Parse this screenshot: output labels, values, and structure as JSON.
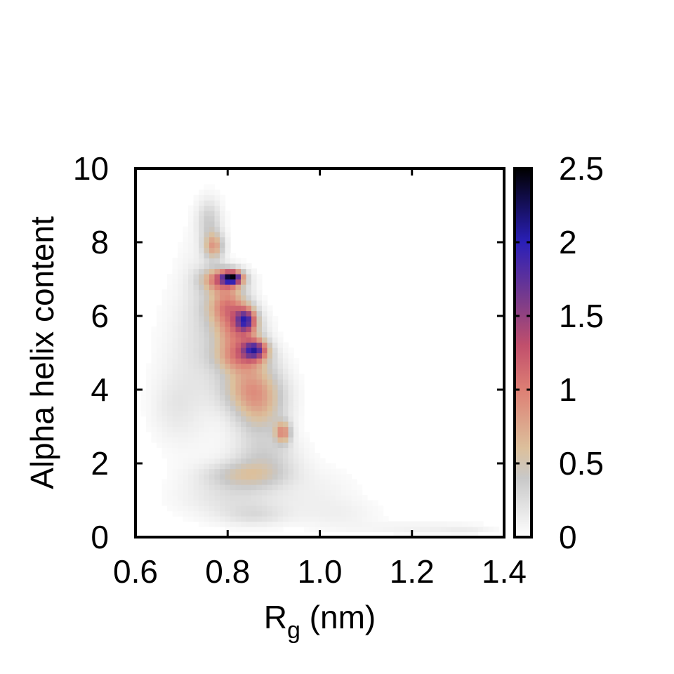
{
  "chart_data": {
    "type": "heatmap",
    "xlabel": "R",
    "xlabel_subscript": "g",
    "xlabel_unit": " (nm)",
    "ylabel": "Alpha helix content",
    "xlim": [
      0.6,
      1.4
    ],
    "ylim": [
      0,
      10
    ],
    "x_ticks": [
      0.6,
      0.8,
      1.0,
      1.2,
      1.4
    ],
    "x_tick_labels": [
      "0.6",
      "0.8",
      "1.0",
      "1.2",
      "1.4"
    ],
    "y_ticks": [
      0,
      2,
      4,
      6,
      8,
      10
    ],
    "y_tick_labels": [
      "0",
      "2",
      "4",
      "6",
      "8",
      "10"
    ],
    "colorbar": {
      "range": [
        0,
        2.5
      ],
      "ticks": [
        0,
        0.5,
        1,
        1.5,
        2,
        2.5
      ],
      "tick_labels": [
        "0",
        "0.5",
        "1",
        "1.5",
        "2",
        "2.5"
      ],
      "colormap": [
        {
          "v": 0.0,
          "color": "#ffffff"
        },
        {
          "v": 0.4,
          "color": "#c8c8c8"
        },
        {
          "v": 0.6,
          "color": "#dcc09c"
        },
        {
          "v": 1.0,
          "color": "#dd7f74"
        },
        {
          "v": 1.3,
          "color": "#c14f6c"
        },
        {
          "v": 1.6,
          "color": "#7c3c8a"
        },
        {
          "v": 2.0,
          "color": "#2a1fb8"
        },
        {
          "v": 2.5,
          "color": "#000000"
        }
      ]
    },
    "density_peaks": [
      {
        "x": 0.76,
        "y": 8.6,
        "sx": 0.018,
        "sy": 0.4,
        "v": 0.35
      },
      {
        "x": 0.77,
        "y": 7.9,
        "sx": 0.015,
        "sy": 0.25,
        "v": 0.75
      },
      {
        "x": 0.79,
        "y": 7.0,
        "sx": 0.03,
        "sy": 0.22,
        "v": 1.1
      },
      {
        "x": 0.81,
        "y": 7.05,
        "sx": 0.015,
        "sy": 0.12,
        "v": 1.6
      },
      {
        "x": 0.8,
        "y": 6.3,
        "sx": 0.03,
        "sy": 0.35,
        "v": 0.9
      },
      {
        "x": 0.84,
        "y": 5.9,
        "sx": 0.015,
        "sy": 0.22,
        "v": 1.3
      },
      {
        "x": 0.82,
        "y": 5.6,
        "sx": 0.035,
        "sy": 0.4,
        "v": 0.85
      },
      {
        "x": 0.86,
        "y": 5.1,
        "sx": 0.018,
        "sy": 0.18,
        "v": 1.3
      },
      {
        "x": 0.83,
        "y": 4.9,
        "sx": 0.04,
        "sy": 0.3,
        "v": 0.8
      },
      {
        "x": 0.85,
        "y": 4.1,
        "sx": 0.045,
        "sy": 0.45,
        "v": 0.7
      },
      {
        "x": 0.87,
        "y": 3.4,
        "sx": 0.04,
        "sy": 0.5,
        "v": 0.5
      },
      {
        "x": 0.92,
        "y": 2.85,
        "sx": 0.012,
        "sy": 0.2,
        "v": 0.8
      },
      {
        "x": 0.88,
        "y": 2.2,
        "sx": 0.05,
        "sy": 0.4,
        "v": 0.32
      },
      {
        "x": 0.84,
        "y": 1.7,
        "sx": 0.06,
        "sy": 0.25,
        "v": 0.42
      },
      {
        "x": 0.82,
        "y": 1.1,
        "sx": 0.08,
        "sy": 0.4,
        "v": 0.22
      },
      {
        "x": 0.86,
        "y": 0.6,
        "sx": 0.05,
        "sy": 0.2,
        "v": 0.18
      },
      {
        "x": 0.72,
        "y": 4.6,
        "sx": 0.05,
        "sy": 1.5,
        "v": 0.14
      },
      {
        "x": 0.68,
        "y": 3.5,
        "sx": 0.035,
        "sy": 0.6,
        "v": 0.1
      },
      {
        "x": 0.74,
        "y": 6.5,
        "sx": 0.03,
        "sy": 1.2,
        "v": 0.12
      },
      {
        "x": 1.0,
        "y": 1.2,
        "sx": 0.06,
        "sy": 0.5,
        "v": 0.08
      },
      {
        "x": 1.05,
        "y": 0.6,
        "sx": 0.06,
        "sy": 0.3,
        "v": 0.08
      },
      {
        "x": 1.22,
        "y": 0.25,
        "sx": 0.09,
        "sy": 0.12,
        "v": 0.1
      },
      {
        "x": 1.32,
        "y": 0.2,
        "sx": 0.04,
        "sy": 0.08,
        "v": 0.08
      }
    ]
  }
}
